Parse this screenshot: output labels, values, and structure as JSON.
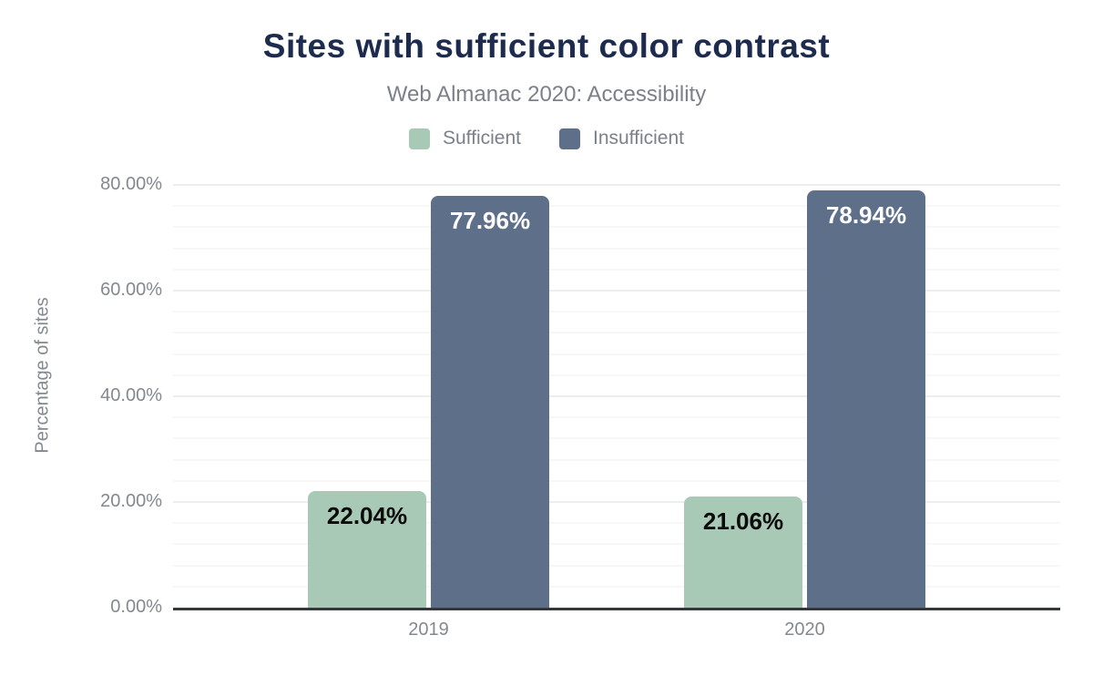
{
  "chart_data": {
    "type": "bar",
    "title": "Sites with sufficient color contrast",
    "subtitle": "Web Almanac 2020: Accessibility",
    "categories": [
      "2019",
      "2020"
    ],
    "series": [
      {
        "name": "Sufficient",
        "color": "#a7c9b6",
        "label_color": "#0b0b0b",
        "values": [
          22.04,
          21.06
        ],
        "labels": [
          "22.04%",
          "21.06%"
        ]
      },
      {
        "name": "Insufficient",
        "color": "#5e7089",
        "label_color": "#ffffff",
        "values": [
          77.96,
          78.94
        ],
        "labels": [
          "77.96%",
          "78.94%"
        ]
      }
    ],
    "xlabel": "",
    "ylabel": "Percentage of sites",
    "ylim": [
      0,
      80
    ],
    "y_ticks": [
      0,
      20,
      40,
      60,
      80
    ],
    "y_tick_labels": [
      "0.00%",
      "20.00%",
      "40.00%",
      "60.00%",
      "80.00%"
    ],
    "minor_grid_step": 4,
    "major_grid_step": 20,
    "grid": "on",
    "legend_position": "top"
  },
  "colors": {
    "title": "#1c2b4e",
    "subtitle": "#7b8089",
    "axis_text": "#84888f",
    "axis_line": "#35383b",
    "grid_major": "#ebedf0",
    "grid_minor": "#f6f7f8",
    "background": "#ffffff"
  }
}
